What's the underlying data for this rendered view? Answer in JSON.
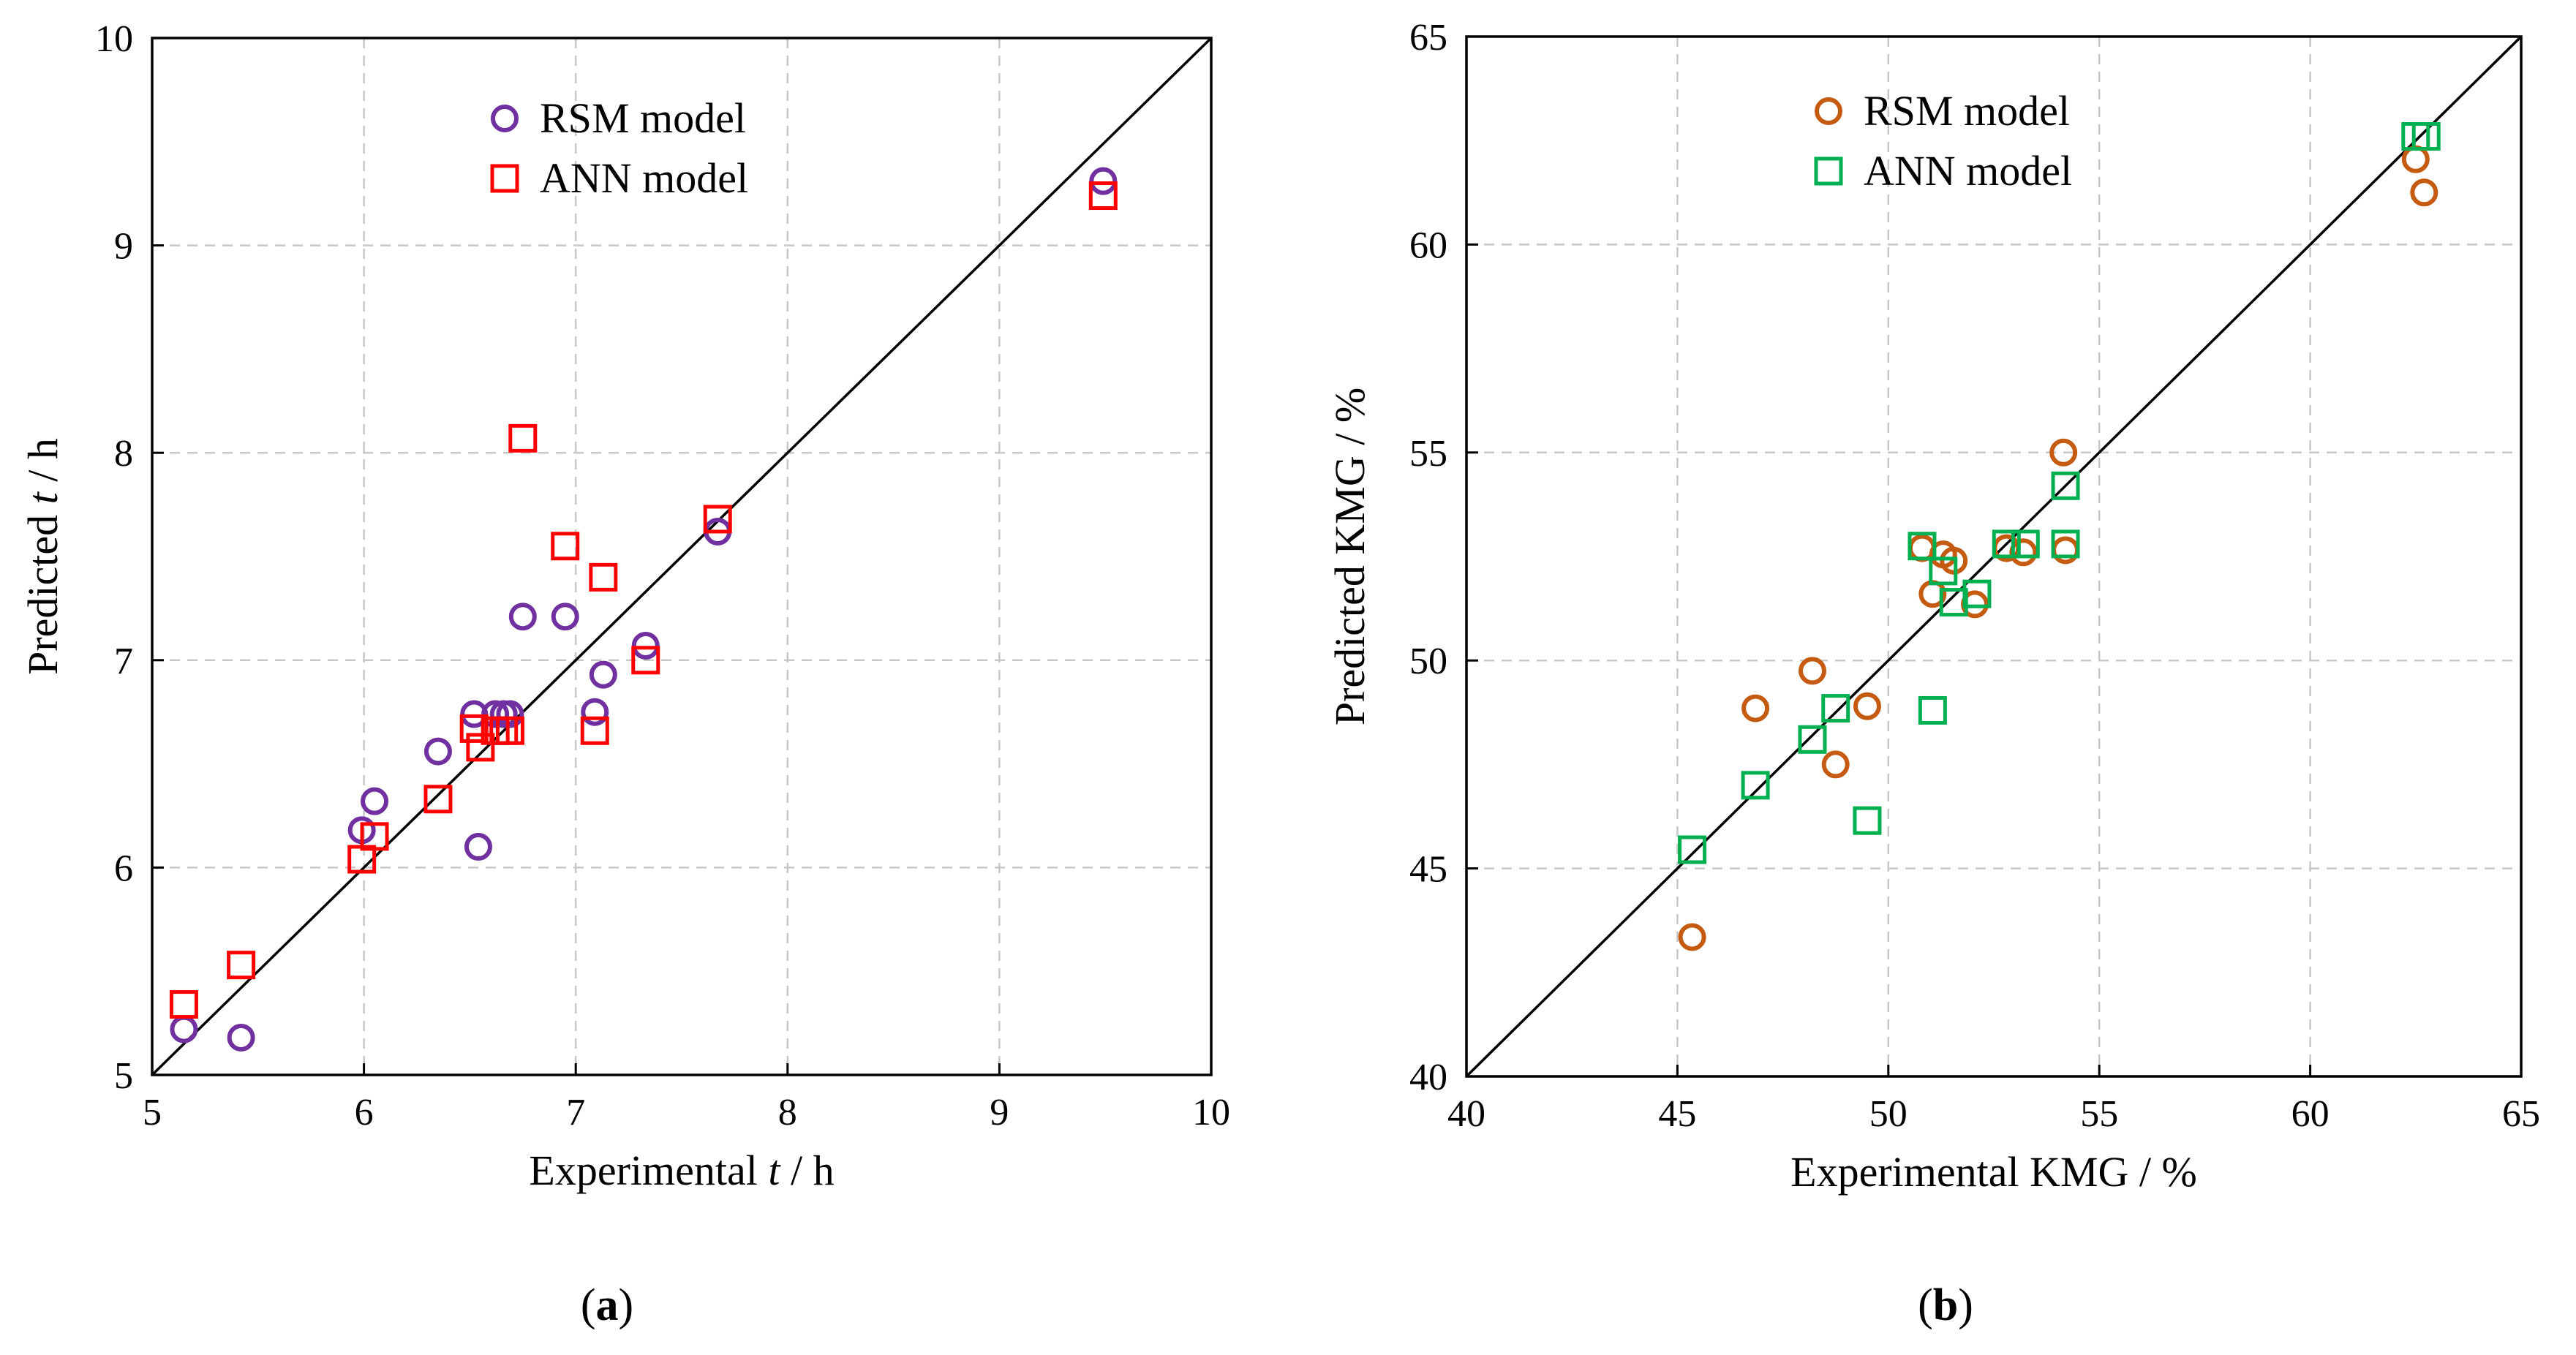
{
  "chart_data": [
    {
      "type": "scatter",
      "panel_label": "a",
      "xlabel": {
        "text": "Experimental ",
        "var": "t",
        "unit": " / h"
      },
      "ylabel": {
        "text": "Predicted  ",
        "var": "t",
        "unit": " / h"
      },
      "xlim": [
        5,
        10
      ],
      "ylim": [
        5,
        10
      ],
      "xticks": [
        5,
        6,
        7,
        8,
        9,
        10
      ],
      "yticks": [
        5,
        6,
        7,
        8,
        9,
        10
      ],
      "grid": true,
      "reference_line": "y = x",
      "legend_position": "top-center",
      "series": [
        {
          "name": "RSM model",
          "marker": "circle",
          "color": "#7030A0",
          "points": [
            [
              5.15,
              5.22
            ],
            [
              5.42,
              5.18
            ],
            [
              5.99,
              6.18
            ],
            [
              6.05,
              6.32
            ],
            [
              6.35,
              6.56
            ],
            [
              6.52,
              6.74
            ],
            [
              6.54,
              6.1
            ],
            [
              6.62,
              6.74
            ],
            [
              6.66,
              6.74
            ],
            [
              6.69,
              6.74
            ],
            [
              6.75,
              7.21
            ],
            [
              6.95,
              7.21
            ],
            [
              7.09,
              6.75
            ],
            [
              7.13,
              6.93
            ],
            [
              7.33,
              7.07
            ],
            [
              7.67,
              7.62
            ],
            [
              9.49,
              9.31
            ]
          ]
        },
        {
          "name": "ANN model",
          "marker": "square",
          "color": "#FF0000",
          "points": [
            [
              5.15,
              5.34
            ],
            [
              5.42,
              5.53
            ],
            [
              5.99,
              6.04
            ],
            [
              6.05,
              6.15
            ],
            [
              6.35,
              6.33
            ],
            [
              6.52,
              6.67
            ],
            [
              6.55,
              6.58
            ],
            [
              6.62,
              6.66
            ],
            [
              6.66,
              6.66
            ],
            [
              6.69,
              6.66
            ],
            [
              6.75,
              8.07
            ],
            [
              6.95,
              7.55
            ],
            [
              7.09,
              6.66
            ],
            [
              7.13,
              7.4
            ],
            [
              7.33,
              7.0
            ],
            [
              7.67,
              7.68
            ],
            [
              9.49,
              9.24
            ]
          ]
        }
      ]
    },
    {
      "type": "scatter",
      "panel_label": "b",
      "xlabel": {
        "text": "Experimental KMG / %"
      },
      "ylabel": {
        "text": "Predicted  KMG / %"
      },
      "xlim": [
        40,
        65
      ],
      "ylim": [
        40,
        65
      ],
      "xticks": [
        40,
        45,
        50,
        55,
        60,
        65
      ],
      "yticks": [
        40,
        45,
        50,
        55,
        60,
        65
      ],
      "grid": true,
      "reference_line": "y = x",
      "legend_position": "top-center",
      "series": [
        {
          "name": "RSM model",
          "marker": "circle",
          "color": "#C55A11",
          "points": [
            [
              45.35,
              43.35
            ],
            [
              46.85,
              48.85
            ],
            [
              48.2,
              49.75
            ],
            [
              48.75,
              47.5
            ],
            [
              49.5,
              48.9
            ],
            [
              50.8,
              52.7
            ],
            [
              51.05,
              51.6
            ],
            [
              51.3,
              52.55
            ],
            [
              51.55,
              52.4
            ],
            [
              52.05,
              51.35
            ],
            [
              52.8,
              52.7
            ],
            [
              53.2,
              52.6
            ],
            [
              54.15,
              55.0
            ],
            [
              54.2,
              52.65
            ],
            [
              62.5,
              62.05
            ],
            [
              62.7,
              61.25
            ]
          ]
        },
        {
          "name": "ANN model",
          "marker": "square",
          "color": "#00B050",
          "points": [
            [
              45.35,
              45.45
            ],
            [
              46.85,
              47.0
            ],
            [
              48.2,
              48.1
            ],
            [
              48.75,
              48.85
            ],
            [
              49.5,
              46.15
            ],
            [
              50.8,
              52.75
            ],
            [
              51.05,
              48.8
            ],
            [
              51.3,
              52.15
            ],
            [
              51.55,
              51.4
            ],
            [
              52.1,
              51.6
            ],
            [
              52.8,
              52.8
            ],
            [
              53.25,
              52.8
            ],
            [
              54.2,
              54.2
            ],
            [
              54.2,
              52.8
            ],
            [
              62.5,
              62.6
            ],
            [
              62.75,
              62.6
            ]
          ]
        }
      ]
    }
  ]
}
